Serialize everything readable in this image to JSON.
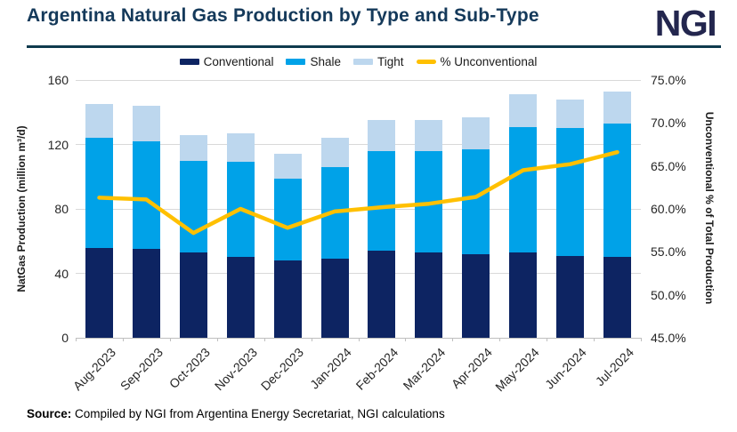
{
  "header": {
    "title": "Argentina Natural Gas Production by Type and Sub-Type",
    "logo": "NGI"
  },
  "legend": [
    {
      "label": "Conventional",
      "type": "rect",
      "color": "#0D2462"
    },
    {
      "label": "Shale",
      "type": "rect",
      "color": "#00A2E8"
    },
    {
      "label": "Tight",
      "type": "rect",
      "color": "#BDD7EE"
    },
    {
      "label": "% Unconventional",
      "type": "line",
      "color": "#FFC000"
    }
  ],
  "chart_data": {
    "type": "bar",
    "subtype": "stacked-bar-with-line-overlay",
    "categories": [
      "Aug-2023",
      "Sep-2023",
      "Oct-2023",
      "Nov-2023",
      "Dec-2023",
      "Jan-2024",
      "Feb-2024",
      "Mar-2024",
      "Apr-2024",
      "May-2024",
      "Jun-2024",
      "Jul-2024"
    ],
    "series": [
      {
        "name": "Conventional",
        "type": "bar",
        "axis": "left",
        "color": "#0D2462",
        "values": [
          56,
          55,
          53,
          50,
          48,
          49,
          54,
          53,
          52,
          53,
          51,
          50
        ]
      },
      {
        "name": "Shale",
        "type": "bar",
        "axis": "left",
        "color": "#00A2E8",
        "values": [
          68,
          67,
          57,
          59,
          51,
          57,
          62,
          63,
          65,
          78,
          79,
          83
        ]
      },
      {
        "name": "Tight",
        "type": "bar",
        "axis": "left",
        "color": "#BDD7EE",
        "values": [
          21,
          22,
          16,
          18,
          15,
          18,
          19,
          19,
          20,
          20,
          18,
          20
        ]
      },
      {
        "name": "% Unconventional",
        "type": "line",
        "axis": "right",
        "color": "#FFC000",
        "values": [
          61.3,
          61.1,
          57.2,
          60.0,
          57.8,
          59.7,
          60.2,
          60.6,
          61.4,
          64.5,
          65.2,
          66.6
        ]
      }
    ],
    "left_axis": {
      "label": "NatGas Production (million m³/d)",
      "min": 0,
      "max": 160,
      "tick_values": [
        0,
        40,
        80,
        120,
        160
      ],
      "tick_labels": [
        "0",
        "40",
        "80",
        "120",
        "160"
      ]
    },
    "right_axis": {
      "label": "Unconventional % of Total Production",
      "min": 45,
      "max": 75,
      "tick_values": [
        45,
        50,
        55,
        60,
        65,
        70,
        75
      ],
      "tick_labels": [
        "45.0%",
        "50.0%",
        "55.0%",
        "60.0%",
        "65.0%",
        "70.0%",
        "75.0%"
      ]
    },
    "grid": true,
    "legend_position": "top",
    "colors": {
      "gridline": "#D9D9D9",
      "axis_line": "#BFBFBF",
      "title": "#14395A",
      "rule": "#0E3A4D"
    }
  },
  "footer": {
    "source_label": "Source:",
    "source_text": " Compiled by NGI from Argentina Energy Secretariat, NGI calculations"
  }
}
